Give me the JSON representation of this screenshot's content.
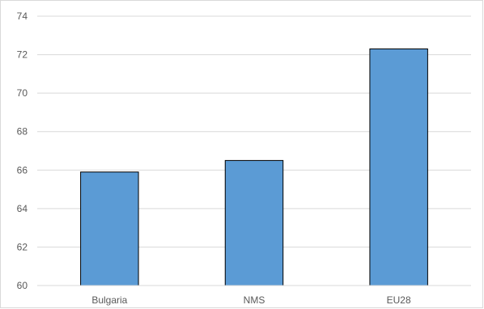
{
  "chart_data": {
    "type": "bar",
    "title": "",
    "xlabel": "",
    "ylabel": "",
    "categories": [
      "Bulgaria",
      "NMS",
      "EU28"
    ],
    "values": [
      65.9,
      66.5,
      72.3
    ],
    "ylim": [
      60,
      74
    ],
    "yticks": [
      "60",
      "62",
      "64",
      "66",
      "68",
      "70",
      "72",
      "74"
    ],
    "grid": true,
    "legend": "none",
    "colors": {
      "bar_fill": "#5b9bd5",
      "bar_stroke": "#000000",
      "grid": "#d9d9d9",
      "axis": "#d9d9d9",
      "text": "#595959"
    }
  }
}
